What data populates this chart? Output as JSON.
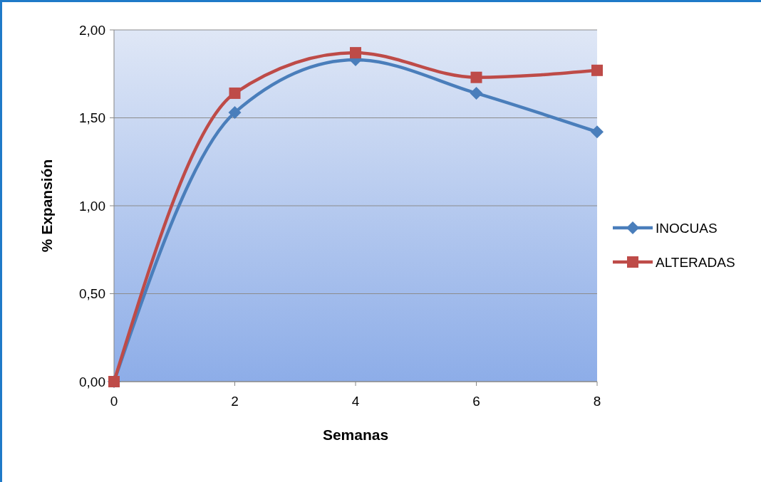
{
  "chart_data": {
    "type": "line",
    "xlabel": "Semanas",
    "ylabel": "% Expansión",
    "x": [
      0,
      2,
      4,
      6,
      8
    ],
    "series": [
      {
        "name": "INOCUAS",
        "color": "#4a7ebb",
        "values": [
          0,
          1.53,
          1.83,
          1.64,
          1.42
        ],
        "marker": "diamond"
      },
      {
        "name": "ALTERADAS",
        "color": "#be4b48",
        "values": [
          0,
          1.64,
          1.87,
          1.73,
          1.77
        ],
        "marker": "square"
      }
    ],
    "xlim": [
      0,
      8
    ],
    "xticks": [
      0,
      2,
      4,
      6,
      8
    ],
    "ylim": [
      0,
      2
    ],
    "yticks": [
      {
        "value": 0,
        "label": "0,00"
      },
      {
        "value": 0.5,
        "label": "0,50"
      },
      {
        "value": 1,
        "label": "1,00"
      },
      {
        "value": 1.5,
        "label": "1,50"
      },
      {
        "value": 2,
        "label": "2,00"
      }
    ],
    "grid": "y",
    "legend": "right",
    "line_style": "solid"
  }
}
